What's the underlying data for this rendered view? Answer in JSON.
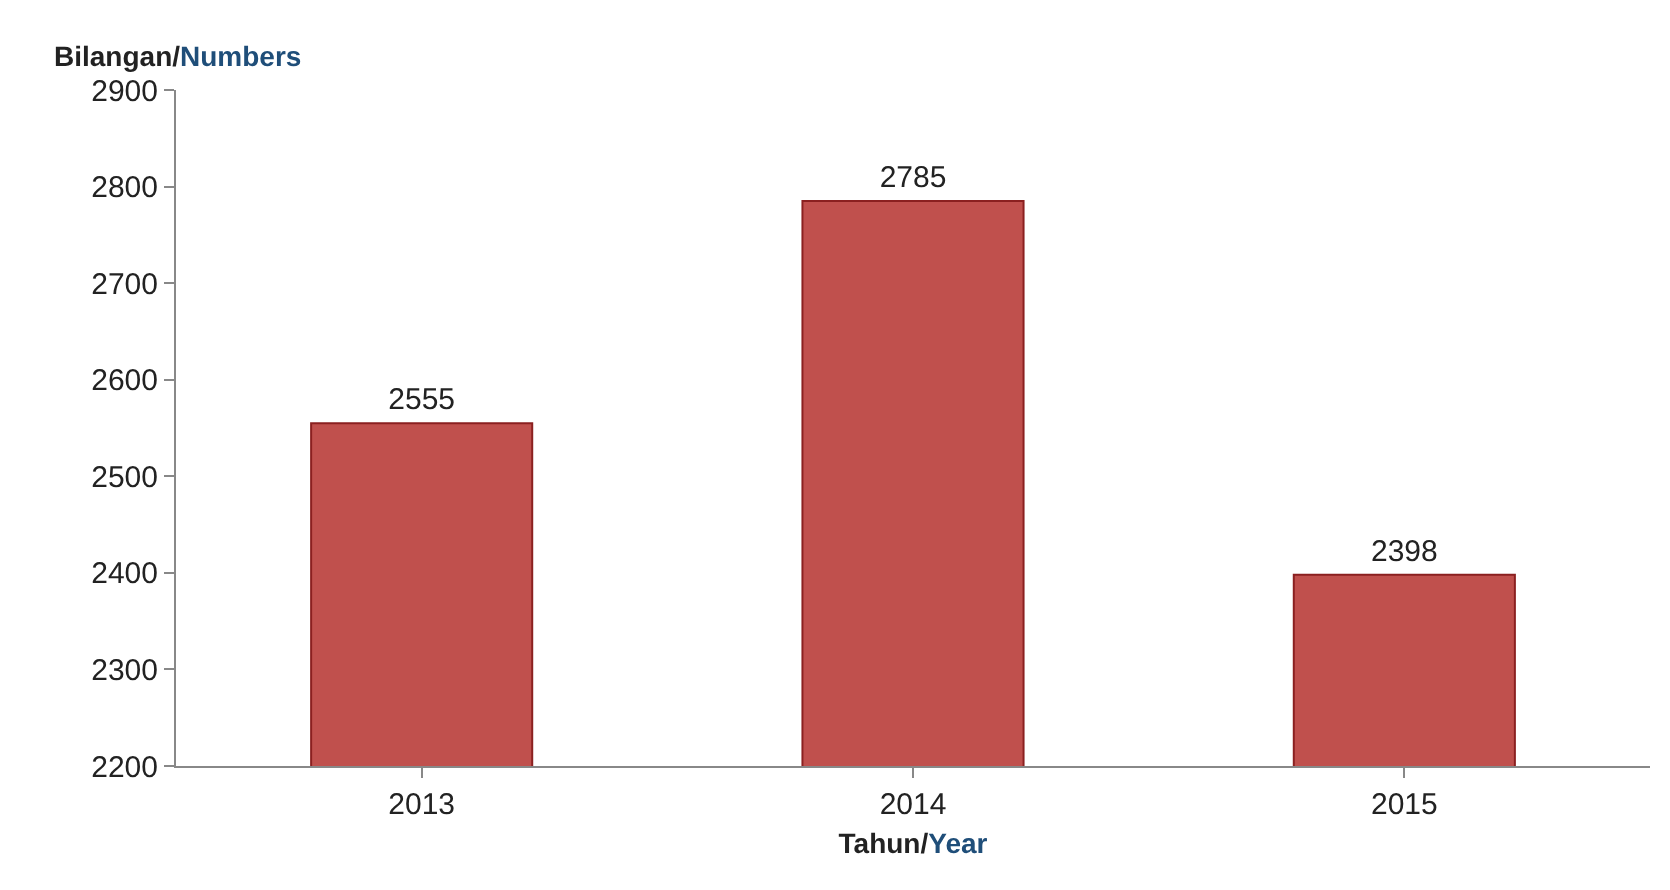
{
  "chart_data": {
    "type": "bar",
    "categories": [
      "2013",
      "2014",
      "2015"
    ],
    "values": [
      2555,
      2785,
      2398
    ],
    "color": "#c0504d",
    "data_labels": true,
    "ylim": [
      2200,
      2900
    ],
    "yticks": [
      2200,
      2300,
      2400,
      2500,
      2600,
      2700,
      2800,
      2900
    ],
    "xlabel": "Tahun/Year",
    "ylabel": "Bilangan/Numbers",
    "grid": false
  }
}
